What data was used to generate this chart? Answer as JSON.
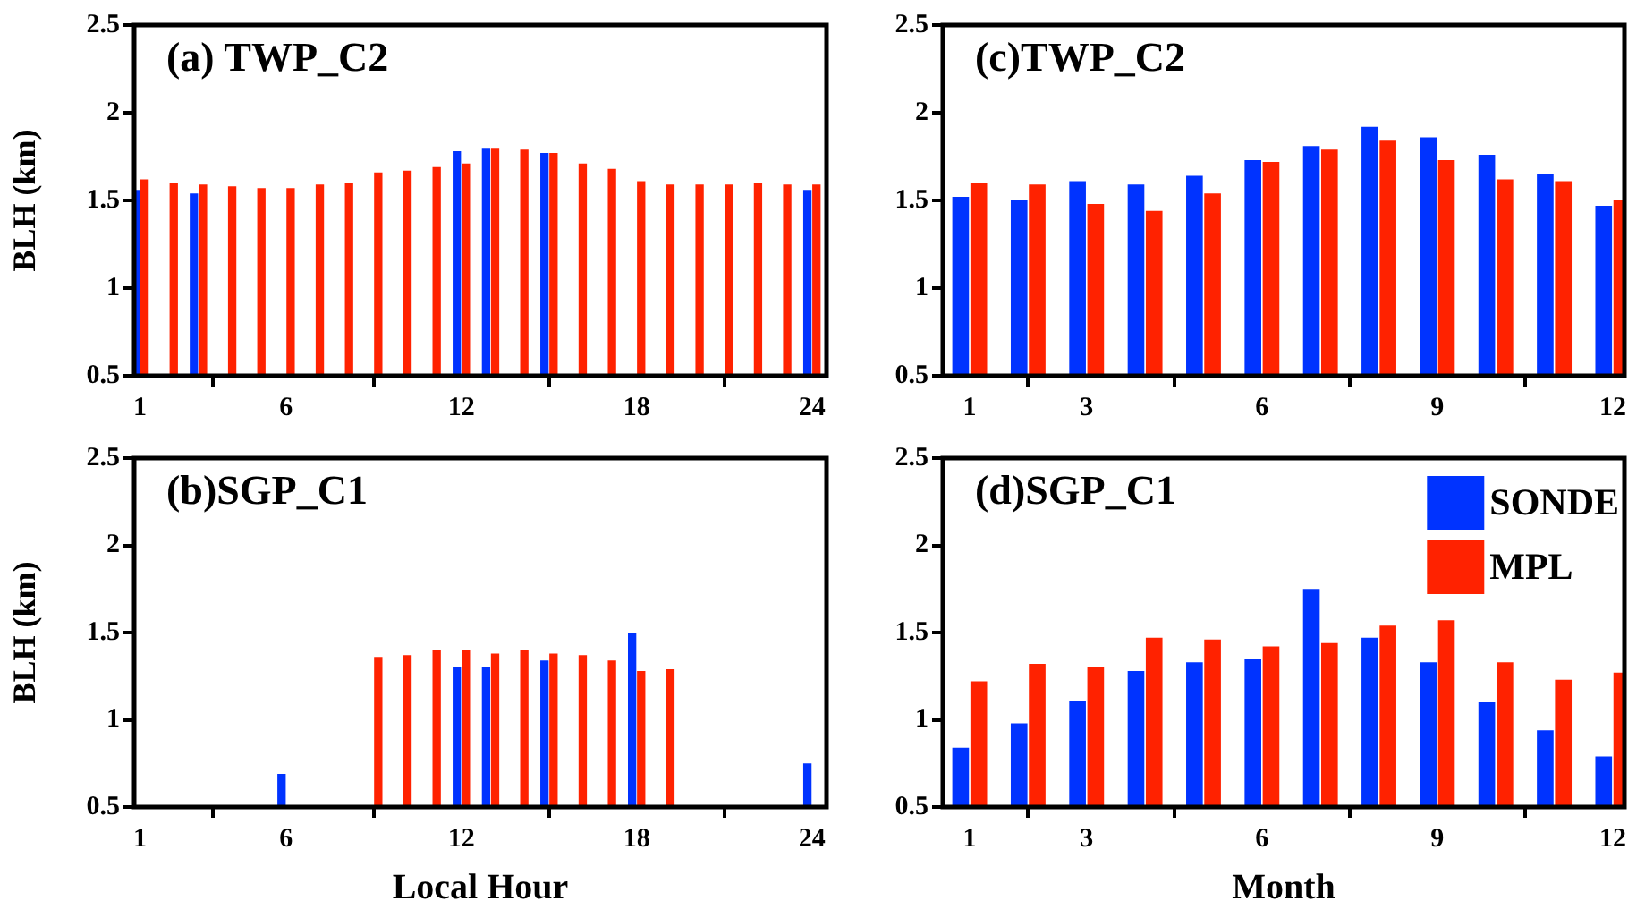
{
  "chart_data": [
    {
      "type": "bar",
      "title": "(a) TWP_C2",
      "ylabel": "BLH (km)",
      "x": [
        1,
        2,
        3,
        4,
        5,
        6,
        7,
        8,
        9,
        10,
        11,
        12,
        13,
        14,
        15,
        16,
        17,
        18,
        19,
        20,
        21,
        22,
        23,
        24
      ],
      "xlim": [
        0.8,
        24.5
      ],
      "xticks": [
        1,
        6,
        12,
        18,
        24
      ],
      "ylim": [
        0.5,
        2.5
      ],
      "yticks": [
        0.5,
        1,
        1.5,
        2,
        2.5
      ],
      "series": [
        {
          "color": "#0033ff",
          "values": [
            1.56,
            null,
            1.54,
            null,
            null,
            null,
            null,
            null,
            null,
            null,
            null,
            1.78,
            1.8,
            null,
            1.77,
            null,
            null,
            null,
            null,
            null,
            null,
            null,
            null,
            1.56
          ]
        },
        {
          "color": "#ff2200",
          "values": [
            1.62,
            1.6,
            1.59,
            1.58,
            1.57,
            1.57,
            1.59,
            1.6,
            1.66,
            1.67,
            1.69,
            1.71,
            1.8,
            1.79,
            1.77,
            1.71,
            1.68,
            1.61,
            1.59,
            1.59,
            1.59,
            1.6,
            1.59,
            1.59
          ]
        }
      ]
    },
    {
      "type": "bar",
      "title": "(b)SGP_C1",
      "ylabel": "BLH (km)",
      "xlabel": "Local Hour",
      "x": [
        6,
        9,
        10,
        11,
        12,
        13,
        14,
        15,
        16,
        17,
        18,
        19,
        24
      ],
      "xlim": [
        0.8,
        24.5
      ],
      "xticks": [
        1,
        6,
        12,
        18,
        24
      ],
      "ylim": [
        0.5,
        2.5
      ],
      "yticks": [
        0.5,
        1,
        1.5,
        2,
        2.5
      ],
      "series": [
        {
          "color": "#0033ff",
          "values": [
            0.69,
            null,
            null,
            null,
            1.3,
            1.3,
            null,
            1.34,
            null,
            null,
            1.5,
            null,
            0.75
          ]
        },
        {
          "color": "#ff2200",
          "values": [
            null,
            1.36,
            1.37,
            1.4,
            1.4,
            1.38,
            1.4,
            1.38,
            1.37,
            1.34,
            1.28,
            1.29,
            null
          ]
        }
      ]
    },
    {
      "type": "bar",
      "title": "(c)TWP_C2",
      "x": [
        1,
        2,
        3,
        4,
        5,
        6,
        7,
        8,
        9,
        10,
        11,
        12
      ],
      "xlim": [
        0.54,
        12.2
      ],
      "xticks": [
        1,
        3,
        6,
        9,
        12
      ],
      "ylim": [
        0.5,
        2.5
      ],
      "yticks": [
        0.5,
        1,
        1.5,
        2,
        2.5
      ],
      "series": [
        {
          "color": "#0033ff",
          "values": [
            1.52,
            1.5,
            1.61,
            1.59,
            1.64,
            1.73,
            1.81,
            1.92,
            1.86,
            1.76,
            1.65,
            1.47
          ]
        },
        {
          "color": "#ff2200",
          "values": [
            1.6,
            1.59,
            1.48,
            1.44,
            1.54,
            1.72,
            1.79,
            1.84,
            1.73,
            1.62,
            1.61,
            1.5
          ]
        }
      ]
    },
    {
      "type": "bar",
      "title": "(d)SGP_C1",
      "xlabel": "Month",
      "x": [
        1,
        2,
        3,
        4,
        5,
        6,
        7,
        8,
        9,
        10,
        11,
        12
      ],
      "xlim": [
        0.54,
        12.2
      ],
      "xticks": [
        1,
        3,
        6,
        9,
        12
      ],
      "ylim": [
        0.5,
        2.5
      ],
      "yticks": [
        0.5,
        1,
        1.5,
        2,
        2.5
      ],
      "legend": "top right",
      "series": [
        {
          "name": "SONDE",
          "color": "#0033ff",
          "values": [
            0.84,
            0.98,
            1.11,
            1.28,
            1.33,
            1.35,
            1.75,
            1.47,
            1.33,
            1.1,
            0.94,
            0.79
          ]
        },
        {
          "name": "MPL",
          "color": "#ff2200",
          "values": [
            1.22,
            1.32,
            1.3,
            1.47,
            1.46,
            1.42,
            1.44,
            1.54,
            1.57,
            1.33,
            1.23,
            1.27
          ]
        }
      ]
    }
  ]
}
